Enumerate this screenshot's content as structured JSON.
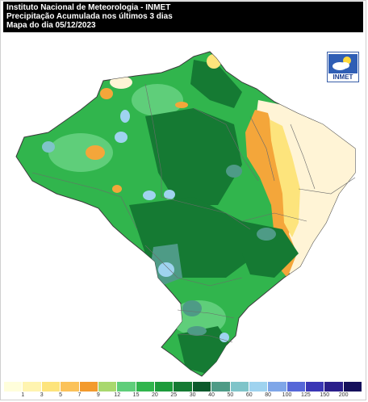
{
  "header": {
    "line1": "Instituto Nacional de Meteorologia - INMET",
    "line2": "Precipitação Acumulada nos últimos 3 dias",
    "line3": "Mapa do dia 05/12/2023"
  },
  "logo": {
    "text": "INMET",
    "icon": "weather-sun-cloud-icon"
  },
  "legend": {
    "labels": [
      "1",
      "3",
      "5",
      "7",
      "9",
      "12",
      "15",
      "20",
      "25",
      "30",
      "40",
      "50",
      "60",
      "80",
      "100",
      "125",
      "150",
      "200"
    ],
    "colors": [
      "#fffedb",
      "#fff4b0",
      "#fde47c",
      "#fbc25a",
      "#f39a2d",
      "#a9d86e",
      "#5fce7a",
      "#31b54d",
      "#1d9b3b",
      "#157a33",
      "#0c5a2c",
      "#4e9b86",
      "#7fc4c9",
      "#9fd3ef",
      "#7fa6e8",
      "#5667d8",
      "#3a36b5",
      "#2a1e8a",
      "#15105b"
    ]
  },
  "colors": {
    "dry": "#fff4d6",
    "orange": "#f4a63a",
    "light_green": "#5fce7a",
    "mid_green": "#31b54d",
    "dark_green": "#157a33",
    "teal": "#4e9b86",
    "light_blue": "#9fd3ef",
    "state_border": "#6b6b6b"
  }
}
